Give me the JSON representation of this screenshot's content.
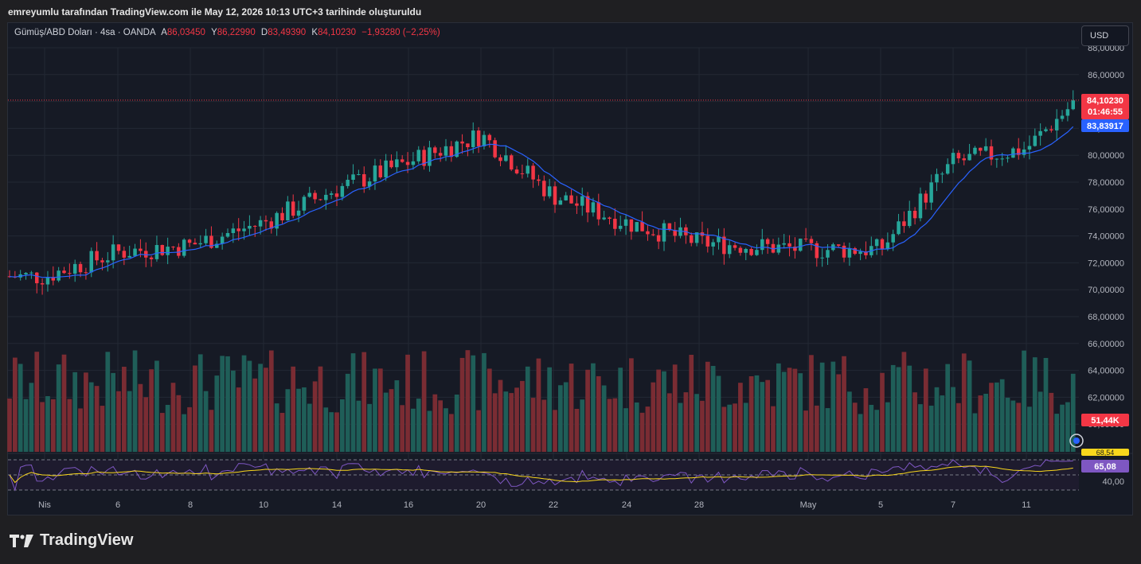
{
  "caption": "emreyumlu tarafından TradingView.com ile May 12, 2026 10:13 UTC+3 tarihinde oluşturuldu",
  "legend": {
    "symbol": "Gümüş/ABD Doları · 4sa · OANDA",
    "open_label": "A",
    "open": "86,03450",
    "high_label": "Y",
    "high": "86,22990",
    "low_label": "D",
    "low": "83,49390",
    "close_label": "K",
    "close": "84,10230",
    "change": "−1,93280 (−2,25%)"
  },
  "currency_button": "USD",
  "price_badges": {
    "last_price": "84,10230",
    "countdown": "01:46:55",
    "ma_value": "83,83917",
    "volume": "51,44K",
    "rsi_value": "65,08",
    "rsi_hidden_label": "68,54"
  },
  "footer_brand": "TradingView",
  "colors": {
    "bull": "#26a69a",
    "bear": "#f23645",
    "ma_line": "#2962ff",
    "rsi_line": "#7e57c2",
    "rsi_ma_line": "#f9d71c",
    "background": "#161a25"
  },
  "chart_data": {
    "type": "candlestick",
    "price_axis": {
      "ticks": [
        "88,00000",
        "86,00000",
        "84,00000",
        "82,00000",
        "80,00000",
        "78,00000",
        "76,00000",
        "74,00000",
        "72,00000",
        "70,00000",
        "68,00000",
        "66,00000",
        "64,00000",
        "62,00000",
        "60,00000"
      ],
      "ylim": [
        60,
        88
      ]
    },
    "rsi_axis": {
      "ticks": [
        "40,00"
      ],
      "levels": [
        70,
        50,
        30
      ]
    },
    "x_axis_labels": [
      "Nis",
      "6",
      "8",
      "10",
      "14",
      "16",
      "20",
      "22",
      "24",
      "28",
      "May",
      "5",
      "7",
      "11"
    ],
    "indicators": [
      "moving_average",
      "volume",
      "rsi"
    ],
    "ohlc_series_key_points": [
      {
        "x": "Nis",
        "close": 71.0
      },
      {
        "x": "6",
        "close": 72.8
      },
      {
        "x": "8",
        "close": 73.3
      },
      {
        "x": "10",
        "close": 75.0
      },
      {
        "x": "14",
        "close": 77.5
      },
      {
        "x": "16",
        "close": 79.5
      },
      {
        "x": "20",
        "close": 81.5
      },
      {
        "x": "22",
        "close": 77.0
      },
      {
        "x": "24",
        "close": 75.0
      },
      {
        "x": "28",
        "close": 73.5
      },
      {
        "x": "May",
        "close": 73.0
      },
      {
        "x": "5",
        "close": 73.0
      },
      {
        "x": "7",
        "close": 79.5
      },
      {
        "x": "11",
        "close": 80.5
      },
      {
        "x": "last",
        "close": 84.1
      }
    ]
  }
}
